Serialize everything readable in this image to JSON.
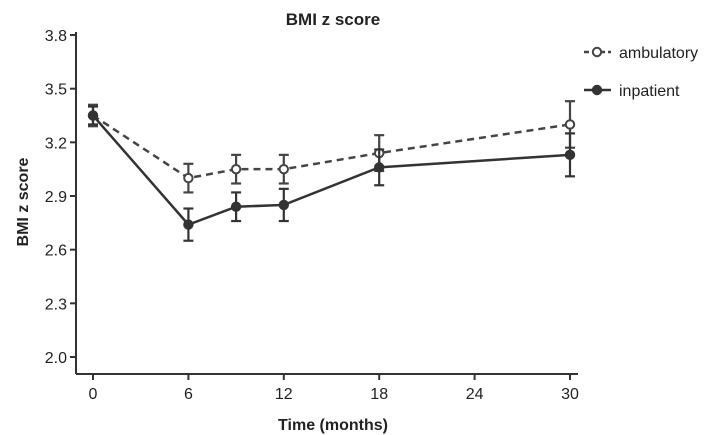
{
  "chart_data": {
    "type": "line",
    "title": "BMI z score",
    "xlabel": "Time (months)",
    "ylabel": "BMI z score",
    "xlim": [
      0,
      30
    ],
    "ylim": [
      2.0,
      3.8
    ],
    "xticks": [
      "0",
      "6",
      "12",
      "18",
      "24",
      "30"
    ],
    "yticks": [
      "2.0",
      "2.3",
      "2.6",
      "2.9",
      "3.2",
      "3.5",
      "3.8"
    ],
    "grid": false,
    "legend_position": "top-right",
    "series": [
      {
        "name": "ambulatory",
        "style": "dashed",
        "marker": "open-circle",
        "color": "#444444",
        "x": [
          0,
          6,
          9,
          12,
          18,
          30
        ],
        "y": [
          3.35,
          3.0,
          3.05,
          3.05,
          3.14,
          3.3
        ],
        "error": [
          0.06,
          0.08,
          0.08,
          0.08,
          0.1,
          0.13
        ]
      },
      {
        "name": "inpatient",
        "style": "solid",
        "marker": "filled-circle",
        "color": "#333333",
        "x": [
          0,
          6,
          9,
          12,
          18,
          30
        ],
        "y": [
          3.35,
          2.74,
          2.84,
          2.85,
          3.06,
          3.13
        ],
        "error": [
          0.05,
          0.09,
          0.08,
          0.09,
          0.1,
          0.12
        ]
      }
    ]
  }
}
